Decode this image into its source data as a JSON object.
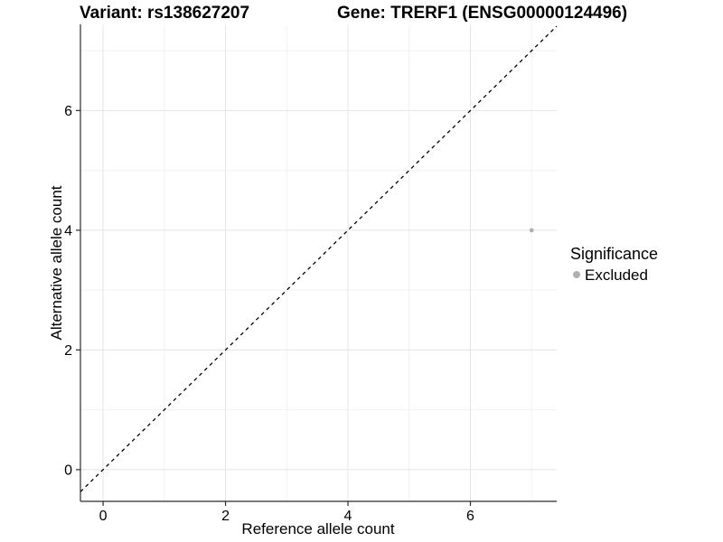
{
  "chart_data": {
    "type": "scatter",
    "title_left": "Variant: rs138627207",
    "title_right": "Gene: TRERF1 (ENSG00000124496)",
    "xlabel": "Reference allele count",
    "ylabel": "Alternative allele count",
    "xticks": [
      0,
      2,
      4,
      6
    ],
    "yticks": [
      0,
      2,
      4,
      6
    ],
    "x_minor": [
      1,
      3,
      5,
      7
    ],
    "y_minor": [
      1,
      3,
      5,
      7
    ],
    "xlim": [
      -0.37,
      7.41
    ],
    "ylim": [
      -0.53,
      7.44
    ],
    "grid": true,
    "points": [
      {
        "x": 7,
        "y": 4,
        "significance": "Excluded",
        "color": "#b0b0b0"
      }
    ],
    "reference_line": {
      "kind": "identity y=x",
      "style": "dashed",
      "color": "#000000"
    },
    "legend": {
      "position": "right",
      "title": "Significance",
      "items": [
        {
          "label": "Excluded",
          "color": "#b0b0b0"
        }
      ]
    },
    "colors": {
      "background": "#ffffff",
      "grid_major": "#e4e4e4",
      "grid_minor": "#f2f2f2",
      "axis": "#2b2b2b",
      "tick_text": "#000000",
      "point": "#b0b0b0"
    }
  }
}
